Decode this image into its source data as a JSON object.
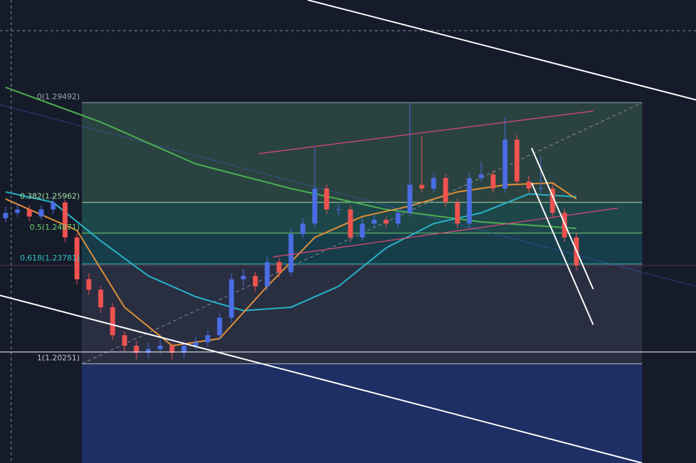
{
  "chart_data": {
    "type": "candlestick",
    "ylim": [
      1.1674,
      1.3312
    ],
    "up_color": "#4a6de5",
    "down_color": "#ef5350",
    "candles": [
      [
        1.254,
        1.258,
        1.2525,
        1.2559
      ],
      [
        1.2559,
        1.259,
        1.2545,
        1.2571
      ],
      [
        1.2571,
        1.2585,
        1.253,
        1.2546
      ],
      [
        1.2546,
        1.2585,
        1.2535,
        1.2571
      ],
      [
        1.2571,
        1.262,
        1.2555,
        1.2596
      ],
      [
        1.2596,
        1.2605,
        1.2455,
        1.2472
      ],
      [
        1.2472,
        1.2485,
        1.2305,
        1.2324
      ],
      [
        1.2324,
        1.2345,
        1.227,
        1.2287
      ],
      [
        1.2287,
        1.23,
        1.2205,
        1.2225
      ],
      [
        1.2225,
        1.224,
        1.211,
        1.2126
      ],
      [
        1.2126,
        1.214,
        1.207,
        1.2089
      ],
      [
        1.2089,
        1.2105,
        1.204,
        1.2064
      ],
      [
        1.2064,
        1.21,
        1.2045,
        1.2077
      ],
      [
        1.2077,
        1.211,
        1.206,
        1.2089
      ],
      [
        1.2089,
        1.21,
        1.204,
        1.2064
      ],
      [
        1.2064,
        1.2105,
        1.2045,
        1.2089
      ],
      [
        1.2089,
        1.212,
        1.2075,
        1.2101
      ],
      [
        1.2101,
        1.2145,
        1.2085,
        1.2126
      ],
      [
        1.2126,
        1.2205,
        1.211,
        1.2188
      ],
      [
        1.2188,
        1.2345,
        1.217,
        1.2324
      ],
      [
        1.2324,
        1.236,
        1.23,
        1.2336
      ],
      [
        1.2336,
        1.235,
        1.228,
        1.2299
      ],
      [
        1.2299,
        1.2405,
        1.2285,
        1.2385
      ],
      [
        1.2385,
        1.24,
        1.233,
        1.2349
      ],
      [
        1.2349,
        1.2505,
        1.2335,
        1.2484
      ],
      [
        1.2484,
        1.254,
        1.247,
        1.2521
      ],
      [
        1.2521,
        1.2794,
        1.2505,
        1.2645
      ],
      [
        1.2645,
        1.266,
        1.2555,
        1.2571
      ],
      [
        1.2571,
        1.259,
        1.255,
        1.2572
      ],
      [
        1.2571,
        1.2585,
        1.2455,
        1.2472
      ],
      [
        1.2472,
        1.254,
        1.246,
        1.2521
      ],
      [
        1.2521,
        1.255,
        1.2505,
        1.2534
      ],
      [
        1.2534,
        1.2545,
        1.2505,
        1.2521
      ],
      [
        1.2521,
        1.2575,
        1.2505,
        1.2559
      ],
      [
        1.2559,
        1.2949,
        1.2545,
        1.2658
      ],
      [
        1.2658,
        1.283,
        1.263,
        1.2645
      ],
      [
        1.2645,
        1.27,
        1.263,
        1.2682
      ],
      [
        1.2682,
        1.2695,
        1.258,
        1.2596
      ],
      [
        1.2596,
        1.261,
        1.2505,
        1.2521
      ],
      [
        1.2521,
        1.27,
        1.2505,
        1.2682
      ],
      [
        1.2682,
        1.274,
        1.267,
        1.2695
      ],
      [
        1.2695,
        1.271,
        1.263,
        1.2645
      ],
      [
        1.2645,
        1.2897,
        1.263,
        1.2818
      ],
      [
        1.2818,
        1.2835,
        1.2655,
        1.267
      ],
      [
        1.267,
        1.269,
        1.263,
        1.2645
      ],
      [
        1.2645,
        1.276,
        1.263,
        1.2646
      ],
      [
        1.2645,
        1.266,
        1.254,
        1.2559
      ],
      [
        1.2559,
        1.2575,
        1.2455,
        1.2472
      ],
      [
        1.2472,
        1.249,
        1.2355,
        1.2373
      ]
    ],
    "series": [
      {
        "color": "#4caf50",
        "x": [
          0,
          8,
          16,
          24,
          32,
          40,
          48
        ],
        "values": [
          1.3003,
          1.288,
          1.2732,
          1.2645,
          1.2571,
          1.2527,
          1.2504
        ]
      },
      {
        "color": "#26b5c9",
        "x": [
          0,
          4,
          8,
          12,
          16,
          20,
          24,
          28,
          32,
          36,
          40,
          44,
          48
        ],
        "values": [
          1.2633,
          1.2596,
          1.246,
          1.2336,
          1.2262,
          1.2213,
          1.2225,
          1.2299,
          1.2435,
          1.2521,
          1.2559,
          1.2626,
          1.2616
        ]
      },
      {
        "color": "#e0913a",
        "x": [
          0,
          6,
          10,
          14,
          18,
          22,
          26,
          30,
          34,
          38,
          42,
          46,
          48
        ],
        "values": [
          1.2608,
          1.2497,
          1.2225,
          1.2089,
          1.2114,
          1.2299,
          1.2472,
          1.2546,
          1.2583,
          1.2633,
          1.2658,
          1.2665,
          1.2608
        ]
      }
    ],
    "fib_levels": [
      {
        "label": "0(1.29492)",
        "price": 1.29492,
        "color": "#9aa3b0",
        "zone": "#2c4641"
      },
      {
        "label": "0.382(1.25962)",
        "price": 1.25962,
        "color": "#9fe39f",
        "zone": "#1f4a4c"
      },
      {
        "label": "0.5(1.24871)",
        "price": 1.24871,
        "color": "#6fd36f",
        "zone": "#183f4c"
      },
      {
        "label": "0.618(1.23781)",
        "price": 1.23781,
        "color": "#2ec4c4",
        "zone": "#2a2f42"
      },
      {
        "label": "1(1.20251)",
        "price": 1.20251,
        "color": "#c0c4cc",
        "zone": "#1e3068"
      }
    ]
  }
}
